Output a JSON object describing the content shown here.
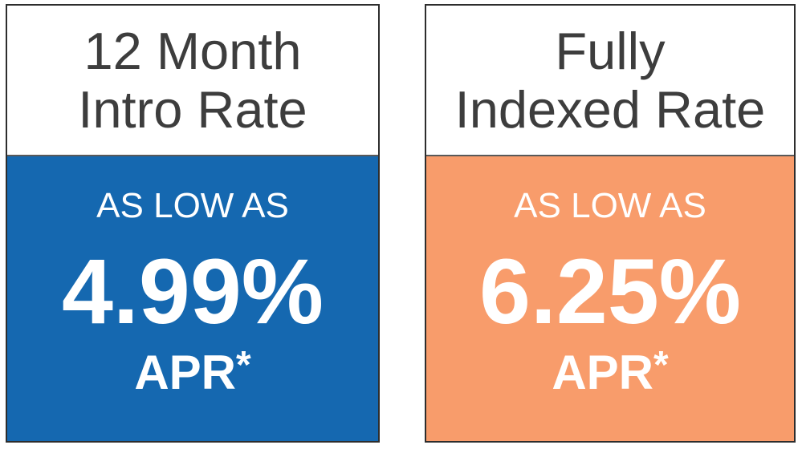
{
  "colors": {
    "background": "#ffffff",
    "card_border": "#2d2d2d",
    "header_divider": "#595959",
    "header_text": "#3d3d3d",
    "panel_text": "#ffffff",
    "intro_panel_blue": "#1568b0",
    "indexed_panel_orange": "#f89c6b"
  },
  "cards": [
    {
      "title_line1": "12 Month",
      "title_line2": "Intro Rate",
      "qualifier": "AS LOW AS",
      "rate": "4.99%",
      "rate_unit": "APR",
      "footnote_marker": "*",
      "panel_color": "#1568b0"
    },
    {
      "title_line1": "Fully",
      "title_line2": "Indexed Rate",
      "qualifier": "AS LOW AS",
      "rate": "6.25%",
      "rate_unit": "APR",
      "footnote_marker": "*",
      "panel_color": "#f89c6b"
    }
  ]
}
